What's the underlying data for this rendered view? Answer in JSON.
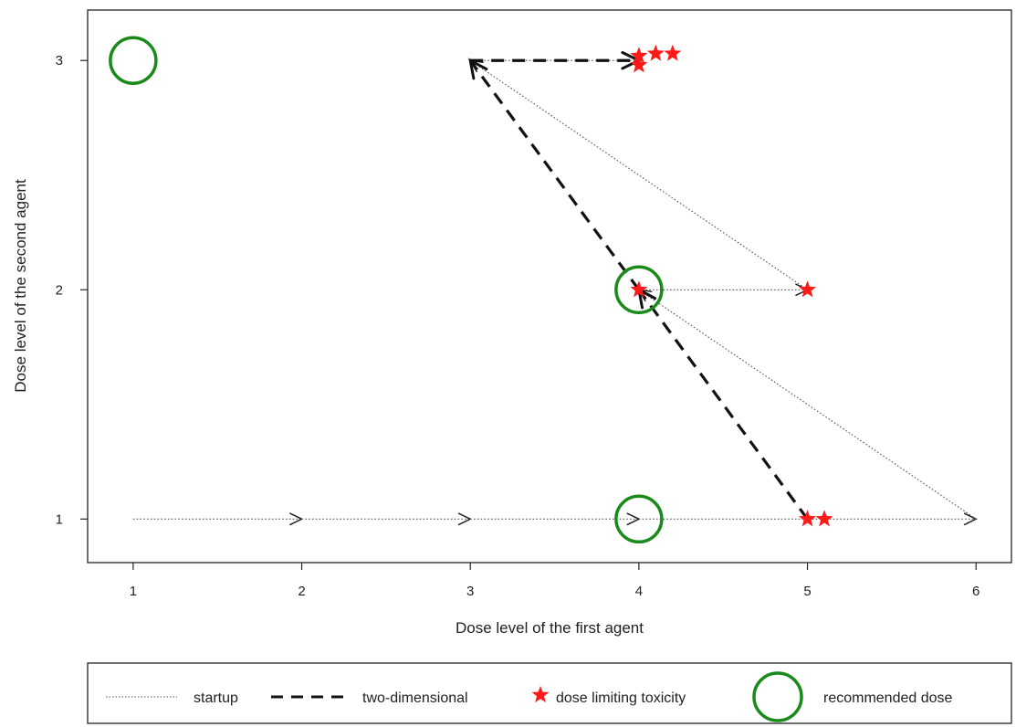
{
  "chart_data": {
    "type": "scatter",
    "title": "",
    "xlabel": "Dose level of the first agent",
    "ylabel": "Dose level of the second agent",
    "xlim": [
      0.73,
      6.21
    ],
    "ylim": [
      0.81,
      3.22
    ],
    "xticks": [
      1,
      2,
      3,
      4,
      5,
      6
    ],
    "yticks": [
      1,
      2,
      3
    ],
    "grid": false,
    "legend_position": "bottom",
    "legend": [
      {
        "key": "startup",
        "label": "startup"
      },
      {
        "key": "two_dimensional",
        "label": "two-dimensional"
      },
      {
        "key": "dlt",
        "label": "dose limiting toxicity"
      },
      {
        "key": "recommended",
        "label": "recommended dose"
      }
    ],
    "colors": {
      "startup": "#555555",
      "two_dimensional": "#111111",
      "dlt": "#ff1a1a",
      "recommended": "#1a8a1a"
    },
    "series": [
      {
        "key": "startup",
        "style": "dotted",
        "segments": [
          {
            "from": [
              1,
              1
            ],
            "to": [
              2,
              1
            ]
          },
          {
            "from": [
              2,
              1
            ],
            "to": [
              3,
              1
            ]
          },
          {
            "from": [
              3,
              1
            ],
            "to": [
              4,
              1
            ]
          },
          {
            "from": [
              4,
              1
            ],
            "to": [
              6,
              1
            ]
          },
          {
            "from": [
              6,
              1
            ],
            "to": [
              4,
              2
            ]
          },
          {
            "from": [
              4,
              2
            ],
            "to": [
              5,
              2
            ]
          },
          {
            "from": [
              5,
              2
            ],
            "to": [
              3,
              3
            ]
          },
          {
            "from": [
              3,
              3
            ],
            "to": [
              4,
              3
            ]
          }
        ]
      },
      {
        "key": "two_dimensional",
        "style": "dashed",
        "segments": [
          {
            "from": [
              3,
              3
            ],
            "to": [
              4,
              3
            ]
          },
          {
            "from": [
              4,
              2
            ],
            "to": [
              3,
              3
            ]
          },
          {
            "from": [
              5,
              1
            ],
            "to": [
              4,
              2
            ]
          }
        ]
      },
      {
        "key": "dlt",
        "points": [
          {
            "x": 4.0,
            "y": 2.0
          },
          {
            "x": 5.0,
            "y": 2.0
          },
          {
            "x": 5.0,
            "y": 1.0
          },
          {
            "x": 5.1,
            "y": 1.0
          },
          {
            "x": 4.0,
            "y": 3.02
          },
          {
            "x": 4.1,
            "y": 3.03
          },
          {
            "x": 4.2,
            "y": 3.03
          },
          {
            "x": 4.0,
            "y": 2.98
          }
        ]
      },
      {
        "key": "recommended",
        "points": [
          {
            "x": 1,
            "y": 3
          },
          {
            "x": 4,
            "y": 2
          },
          {
            "x": 4,
            "y": 1
          }
        ]
      }
    ]
  }
}
